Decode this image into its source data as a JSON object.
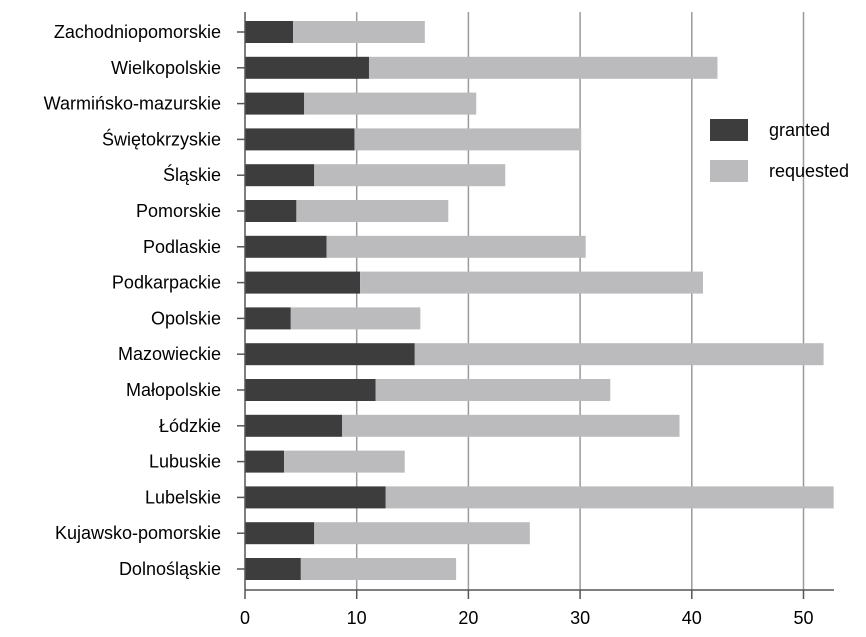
{
  "colors": {
    "granted": "#3d3d3d",
    "requested": "#bbbbbd",
    "grid": "#9a9a9a",
    "axis": "#555555",
    "text": "#000000"
  },
  "chart_data": {
    "type": "bar",
    "orientation": "horizontal",
    "stacked": true,
    "title": "",
    "xlabel": "",
    "ylabel": "",
    "xlim": [
      0,
      55
    ],
    "x_ticks": [
      0,
      10,
      20,
      30,
      40,
      50
    ],
    "grid": true,
    "legend_position": "right",
    "categories": [
      "Zachodniopomorskie",
      "Wielkopolskie",
      "Warmińsko-mazurskie",
      "Świętokrzyskie",
      "Śląskie",
      "Pomorskie",
      "Podlaskie",
      "Podkarpackie",
      "Opolskie",
      "Mazowieckie",
      "Małopolskie",
      "Łódzkie",
      "Lubuskie",
      "Lubelskie",
      "Kujawsko-pomorskie",
      "Dolnośląskie"
    ],
    "series": [
      {
        "name": "granted",
        "values": [
          4.3,
          11.1,
          5.3,
          9.8,
          6.2,
          4.6,
          7.3,
          10.3,
          4.1,
          15.2,
          11.7,
          8.7,
          3.5,
          12.6,
          6.2,
          5.0
        ]
      },
      {
        "name": "requested",
        "values": [
          11.8,
          31.2,
          15.4,
          20.3,
          17.1,
          13.6,
          23.2,
          30.7,
          11.6,
          36.6,
          21.0,
          30.2,
          10.8,
          40.1,
          19.3,
          13.9
        ]
      }
    ]
  }
}
